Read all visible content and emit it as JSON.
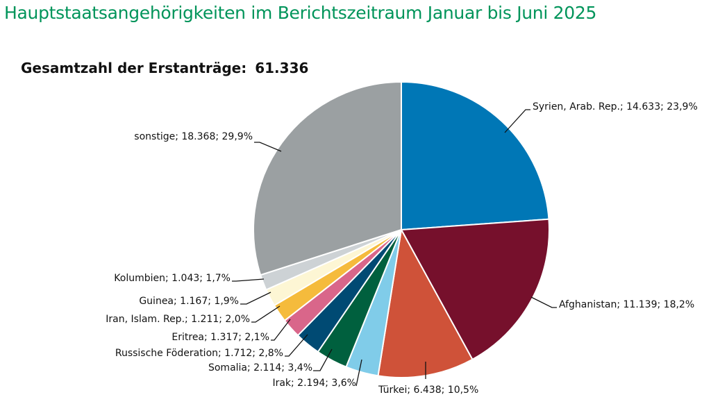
{
  "chart_data": {
    "type": "pie",
    "title": "Hauptstaatsangehörigkeiten im Berichtszeitraum Januar bis Juni 2025",
    "subtitle_label": "Gesamtzahl der Erstanträge:",
    "total": "61.336",
    "slices": [
      {
        "name": "Syrien, Arab. Rep.",
        "value": 14633,
        "percent": 23.9,
        "label": "Syrien, Arab. Rep.; 14.633; 23,9%",
        "color": "#0077b6"
      },
      {
        "name": "Afghanistan",
        "value": 11139,
        "percent": 18.2,
        "label": "Afghanistan; 11.139; 18,2%",
        "color": "#76102c"
      },
      {
        "name": "Türkei",
        "value": 6438,
        "percent": 10.5,
        "label": "Türkei; 6.438; 10,5%",
        "color": "#cf5239"
      },
      {
        "name": "Irak",
        "value": 2194,
        "percent": 3.6,
        "label": "Irak; 2.194; 3,6%",
        "color": "#80cce9"
      },
      {
        "name": "Somalia",
        "value": 2114,
        "percent": 3.4,
        "label": "Somalia; 2.114; 3,4%",
        "color": "#00603e"
      },
      {
        "name": "Russische Föderation",
        "value": 1712,
        "percent": 2.8,
        "label": "Russische Föderation; 1.712; 2,8%",
        "color": "#004a73"
      },
      {
        "name": "Eritrea",
        "value": 1317,
        "percent": 2.1,
        "label": "Eritrea; 1.317; 2,1%",
        "color": "#d9668a"
      },
      {
        "name": "Iran, Islam. Rep.",
        "value": 1211,
        "percent": 2.0,
        "label": "Iran, Islam. Rep.; 1.211; 2,0%",
        "color": "#f5bb3c"
      },
      {
        "name": "Guinea",
        "value": 1167,
        "percent": 1.9,
        "label": "Guinea; 1.167; 1,9%",
        "color": "#fdf6d4"
      },
      {
        "name": "Kolumbien",
        "value": 1043,
        "percent": 1.7,
        "label": "Kolumbien; 1.043; 1,7%",
        "color": "#cdd2d5"
      },
      {
        "name": "sonstige",
        "value": 18368,
        "percent": 29.9,
        "label": "sonstige; 18.368; 29,9%",
        "color": "#9ba0a2"
      }
    ]
  }
}
